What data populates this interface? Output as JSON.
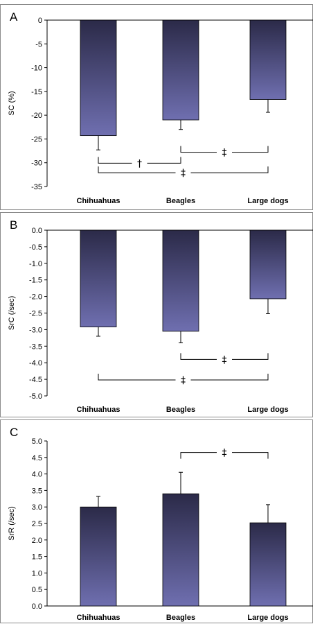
{
  "colors": {
    "bar_dark": "#2b2a48",
    "bar_light": "#6f6fb0",
    "line": "#000000",
    "panel_border": "#8a8a8a"
  },
  "chart_data": [
    {
      "type": "bar",
      "panel": "A",
      "ylabel": "SC (%)",
      "categories": [
        "Chihuahuas",
        "Beagles",
        "Large dogs"
      ],
      "values": [
        -24.3,
        -21.0,
        -16.7
      ],
      "errors": [
        3.0,
        2.0,
        2.7
      ],
      "ylim": [
        -35,
        0
      ],
      "yticks": [
        0,
        -5,
        -10,
        -15,
        -20,
        -25,
        -30,
        -35
      ],
      "tick_decimals": 0,
      "significance": [
        {
          "from": 1,
          "to": 2,
          "y": -27.8,
          "label": "‡"
        },
        {
          "from": 0,
          "to": 1,
          "y": -30.1,
          "label": "†"
        },
        {
          "from": 0,
          "to": 2,
          "y": -32.1,
          "label": "‡"
        }
      ]
    },
    {
      "type": "bar",
      "panel": "B",
      "ylabel": "SrC (/sec)",
      "categories": [
        "Chihuahuas",
        "Beagles",
        "Large dogs"
      ],
      "values": [
        -2.92,
        -3.05,
        -2.07
      ],
      "errors": [
        0.28,
        0.35,
        0.45
      ],
      "ylim": [
        -5.0,
        0.0
      ],
      "yticks": [
        0.0,
        -0.5,
        -1.0,
        -1.5,
        -2.0,
        -2.5,
        -3.0,
        -3.5,
        -4.0,
        -4.5,
        -5.0
      ],
      "tick_decimals": 1,
      "significance": [
        {
          "from": 1,
          "to": 2,
          "y": -3.9,
          "label": "‡"
        },
        {
          "from": 0,
          "to": 2,
          "y": -4.52,
          "label": "‡"
        }
      ]
    },
    {
      "type": "bar",
      "panel": "C",
      "ylabel": "SrR (/sec)",
      "categories": [
        "Chihuahuas",
        "Beagles",
        "Large dogs"
      ],
      "values": [
        3.0,
        3.4,
        2.52
      ],
      "errors": [
        0.32,
        0.65,
        0.55
      ],
      "ylim": [
        0.0,
        5.0
      ],
      "yticks": [
        0.0,
        0.5,
        1.0,
        1.5,
        2.0,
        2.5,
        3.0,
        3.5,
        4.0,
        4.5,
        5.0
      ],
      "tick_decimals": 1,
      "significance": [
        {
          "from": 1,
          "to": 2,
          "y": 4.65,
          "label": "‡"
        }
      ]
    }
  ]
}
